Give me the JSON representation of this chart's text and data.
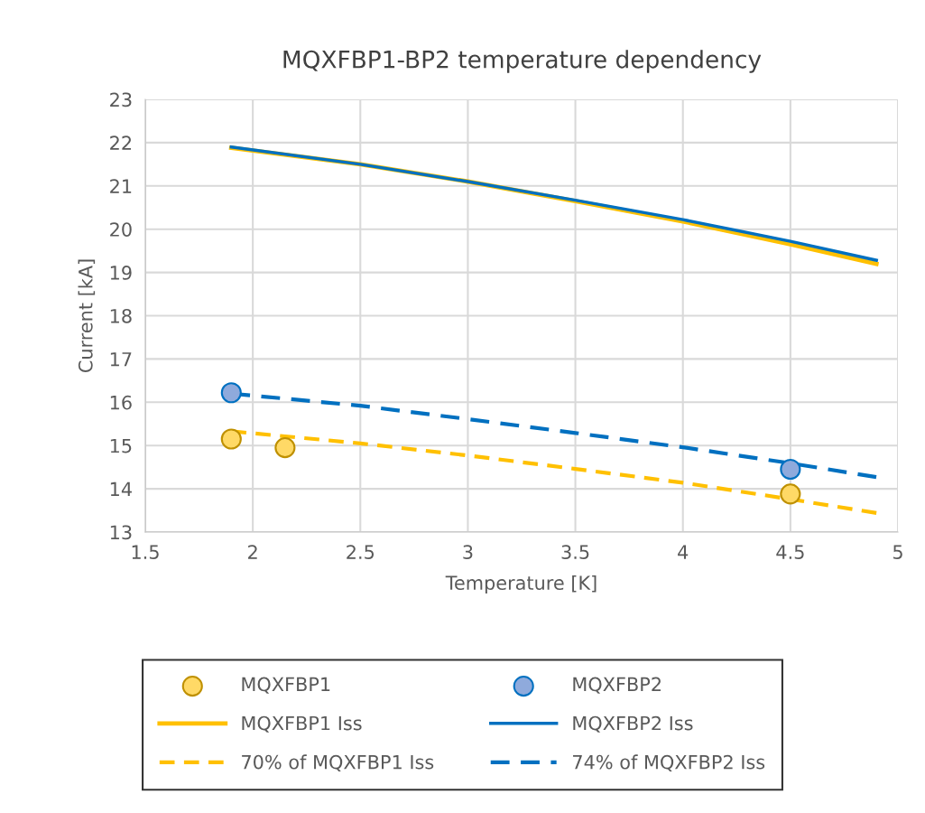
{
  "chart_data": {
    "type": "scatter",
    "title": "MQXFBP1-BP2 temperature dependency",
    "xlabel": "Temperature [K]",
    "ylabel": "Current [kA]",
    "xlim": [
      1.5,
      5
    ],
    "xticks": [
      1.5,
      2,
      2.5,
      3,
      3.5,
      4,
      4.5,
      5
    ],
    "ylim": [
      13,
      23
    ],
    "yticks": [
      13,
      14,
      15,
      16,
      17,
      18,
      19,
      20,
      21,
      22,
      23
    ],
    "grid": true,
    "legend": "bottom",
    "series": [
      {
        "name": "MQXFBP1",
        "marker": "circle",
        "color": "#ffd966",
        "x": [
          1.9,
          2.15,
          4.5
        ],
        "values": [
          15.15,
          14.95,
          13.88
        ]
      },
      {
        "name": "MQXFBP2",
        "marker": "circle",
        "color": "#8faadc",
        "x": [
          1.9,
          4.5
        ],
        "values": [
          16.22,
          14.45
        ]
      },
      {
        "name": "MQXFBP1 Iss",
        "type": "line",
        "line_style": "solid",
        "color": "#ffc000",
        "x": [
          1.9,
          2.5,
          3,
          3.5,
          4,
          4.5,
          4.9
        ],
        "values": [
          21.88,
          21.5,
          21.1,
          20.65,
          20.18,
          19.65,
          19.2
        ]
      },
      {
        "name": "MQXFBP2 Iss",
        "type": "line",
        "line_style": "solid",
        "color": "#0070c0",
        "x": [
          1.9,
          2.5,
          3,
          3.5,
          4,
          4.5,
          4.9
        ],
        "values": [
          21.9,
          21.5,
          21.1,
          20.67,
          20.22,
          19.72,
          19.28
        ]
      },
      {
        "name": "70% of MQXFBP1 Iss",
        "type": "line",
        "line_style": "dashed",
        "color": "#ffc000",
        "x": [
          1.9,
          2.5,
          3,
          3.5,
          4,
          4.5,
          4.9
        ],
        "values": [
          15.33,
          15.05,
          14.77,
          14.46,
          14.14,
          13.76,
          13.44
        ]
      },
      {
        "name": "74% of MQXFBP2 Iss",
        "type": "line",
        "line_style": "dashed",
        "color": "#0070c0",
        "x": [
          1.9,
          2.5,
          3,
          3.5,
          4,
          4.5,
          4.9
        ],
        "values": [
          16.2,
          15.92,
          15.61,
          15.29,
          14.96,
          14.59,
          14.27
        ]
      }
    ]
  }
}
